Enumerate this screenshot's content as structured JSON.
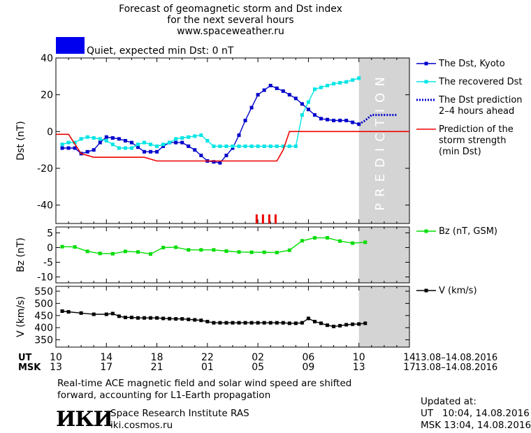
{
  "header": {
    "title_lines": [
      "Forecast of geomagnetic storm and Dst index",
      "for the next several hours",
      "www.spaceweather.ru"
    ],
    "status_text": "Quiet, expected min Dst: 0 nT",
    "status_color": "#0000ee"
  },
  "chart_data": [
    {
      "type": "line",
      "ylabel": "Dst (nT)",
      "ylim": [
        -50,
        40
      ],
      "yticks": [
        40,
        20,
        0,
        -20,
        -40
      ],
      "x_hours_range": [
        0,
        14
      ],
      "prediction_band": {
        "from_hour": 10,
        "to_hour": 14,
        "label": "PREDICTION",
        "color": "#d4d4d4"
      },
      "storm_markers_hours": [
        1.9,
        2.4,
        2.9,
        3.4
      ],
      "series": [
        {
          "name": "The Dst, Kyoto",
          "color": "#0000cc",
          "marker": "square",
          "x": [
            10.5,
            11,
            11.5,
            12,
            12.5,
            13,
            13.5,
            14,
            14.5,
            15,
            15.5,
            16,
            16.5,
            17,
            17.5,
            18,
            18.5,
            19,
            19.5,
            20,
            20.5,
            21,
            21.5,
            22,
            22.5,
            23,
            23.5,
            24,
            24.5,
            25,
            25.5,
            26,
            26.5,
            27,
            27.5,
            28,
            28.5,
            29,
            29.5,
            30,
            30.5,
            31,
            31.5,
            32,
            32.5,
            33,
            33.5,
            34
          ],
          "y": [
            -9,
            -9,
            -9,
            -12,
            -11,
            -10,
            -6,
            -3,
            -3.5,
            -4,
            -5,
            -6,
            -8.5,
            -11,
            -11,
            -11,
            -8,
            -6,
            -6,
            -6,
            -8,
            -10,
            -13,
            -16,
            -16.5,
            -17,
            -13,
            -9,
            -2,
            6,
            13,
            20,
            22.5,
            25,
            23.5,
            22,
            20,
            18,
            15,
            12,
            9,
            7,
            6.5,
            6,
            6,
            6,
            5,
            4
          ]
        },
        {
          "name": "The recovered Dst",
          "color": "#00e5e5",
          "marker": "square",
          "x": [
            10.5,
            11,
            11.5,
            12,
            12.5,
            13,
            13.5,
            14,
            14.5,
            15,
            15.5,
            16,
            16.5,
            17,
            17.5,
            18,
            18.5,
            19,
            19.5,
            20,
            20.5,
            21,
            21.5,
            22,
            22.5,
            23,
            23.5,
            24,
            24.5,
            25,
            25.5,
            26,
            26.5,
            27,
            27.5,
            28,
            28.5,
            29,
            29.5,
            30,
            30.5,
            31,
            31.5,
            32,
            32.5,
            33,
            33.5,
            34
          ],
          "y": [
            -7,
            -6,
            -6,
            -4,
            -3,
            -3.5,
            -4,
            -5,
            -7,
            -9,
            -9,
            -9,
            -7,
            -6,
            -7,
            -8,
            -7,
            -6,
            -4,
            -3.5,
            -3,
            -2.5,
            -2,
            -5,
            -8,
            -8,
            -8,
            -8,
            -8,
            -8,
            -8,
            -8,
            -8,
            -8,
            -8,
            -8,
            -8,
            -8,
            9,
            16,
            23,
            24,
            25,
            26,
            26.5,
            27,
            28,
            29
          ]
        },
        {
          "name": "The Dst prediction 2-4 hours ahead",
          "color": "#0000cc",
          "marker": "dotted",
          "x": [
            34,
            34.5,
            35,
            36,
            37
          ],
          "y": [
            4,
            6,
            9,
            9,
            9
          ]
        },
        {
          "name": "Prediction of the storm strength (min Dst)",
          "color": "#ee0000",
          "marker": "line",
          "x": [
            10,
            11,
            12,
            13,
            14,
            17,
            18,
            19,
            20,
            21,
            22,
            23,
            24,
            25,
            26,
            27,
            27.5,
            28,
            28.5,
            30,
            32,
            34,
            38
          ],
          "y": [
            -1.5,
            -1.5,
            -12,
            -14,
            -14,
            -14,
            -16,
            -16,
            -16,
            -16,
            -16,
            -16,
            -16,
            -16,
            -16,
            -16,
            -16,
            -10,
            0,
            0,
            0,
            0,
            0
          ]
        }
      ],
      "legend": [
        {
          "name": "The Dst, Kyoto",
          "lines": [
            "The Dst, Kyoto"
          ]
        },
        {
          "name": "The recovered Dst",
          "lines": [
            "The recovered Dst"
          ]
        },
        {
          "name": "The Dst prediction 2-4 hours ahead",
          "lines": [
            "The Dst prediction",
            "2–4 hours ahead"
          ]
        },
        {
          "name": "Prediction of the storm strength (min Dst)",
          "lines": [
            "Prediction of the",
            "storm strength",
            "(min Dst)"
          ]
        }
      ]
    },
    {
      "type": "line",
      "ylabel": "Bz (nT)",
      "ylim": [
        -12,
        7
      ],
      "yticks": [
        5,
        0,
        -5,
        -10
      ],
      "series": [
        {
          "name": "Bz (nT, GSM)",
          "color": "#00dd00",
          "marker": "square",
          "x": [
            10.5,
            11.5,
            12.5,
            13.5,
            14.5,
            15.5,
            16.5,
            17.5,
            18.5,
            19.5,
            20.5,
            21.5,
            22.5,
            23.5,
            24.5,
            25.5,
            26.5,
            27.5,
            28.5,
            29.5,
            30.5,
            31.5,
            32.5,
            33.5,
            34.5
          ],
          "y": [
            0.3,
            0.2,
            -1.3,
            -2.0,
            -2.1,
            -1.3,
            -1.5,
            -2.2,
            0,
            0.1,
            -0.8,
            -0.8,
            -0.8,
            -1.2,
            -1.5,
            -1.6,
            -1.6,
            -1.7,
            -0.9,
            2.3,
            3.3,
            3.3,
            2.2,
            1.5,
            1.8
          ]
        }
      ],
      "legend": [
        {
          "name": "Bz (nT, GSM)",
          "lines": [
            "Bz (nT, GSM)"
          ]
        }
      ]
    },
    {
      "type": "line",
      "ylabel": "V (km/s)",
      "ylim": [
        320,
        570
      ],
      "yticks": [
        550,
        500,
        450,
        400,
        350
      ],
      "series": [
        {
          "name": "V (km/s)",
          "color": "#000000",
          "marker": "square",
          "x": [
            10.5,
            11,
            12,
            13,
            14,
            14.5,
            15,
            15.5,
            16,
            16.5,
            17,
            17.5,
            18,
            18.5,
            19,
            19.5,
            20,
            20.5,
            21,
            21.5,
            22,
            22.5,
            23,
            23.5,
            24,
            24.5,
            25,
            25.5,
            26,
            26.5,
            27,
            27.5,
            28,
            28.5,
            29,
            29.5,
            30,
            30.5,
            31,
            31.5,
            32,
            32.5,
            33,
            33.5,
            34,
            34.5
          ],
          "y": [
            468,
            465,
            460,
            455,
            455,
            458,
            447,
            442,
            442,
            440,
            440,
            440,
            440,
            438,
            437,
            436,
            436,
            434,
            432,
            430,
            425,
            420,
            420,
            420,
            420,
            420,
            420,
            420,
            420,
            420,
            420,
            420,
            420,
            418,
            418,
            420,
            438,
            425,
            418,
            410,
            405,
            408,
            412,
            414,
            415,
            418
          ]
        }
      ],
      "legend": [
        {
          "name": "V (km/s)",
          "lines": [
            "V (km/s)"
          ]
        }
      ]
    }
  ],
  "xaxis": {
    "ut_label": "UT",
    "msk_label": "MSK",
    "ut_ticks": [
      "10",
      "14",
      "18",
      "22",
      "02",
      "06",
      "10",
      "14"
    ],
    "msk_ticks": [
      "13",
      "17",
      "21",
      "01",
      "05",
      "09",
      "13",
      "17"
    ],
    "date_range": "13.08–14.08.2016"
  },
  "footnote": [
    "Real-time ACE magnetic field and solar wind speed are shifted",
    "forward, accounting for L1-Earth propagation"
  ],
  "institute": {
    "logo_text": "ИКИ",
    "name": "Space Research Institute RAS",
    "url": "iki.cosmos.ru"
  },
  "updated": {
    "label": "Updated at:",
    "ut_line": "UT   10:04, 14.08.2016",
    "msk_line": "MSK 13:04, 14.08.2016"
  }
}
